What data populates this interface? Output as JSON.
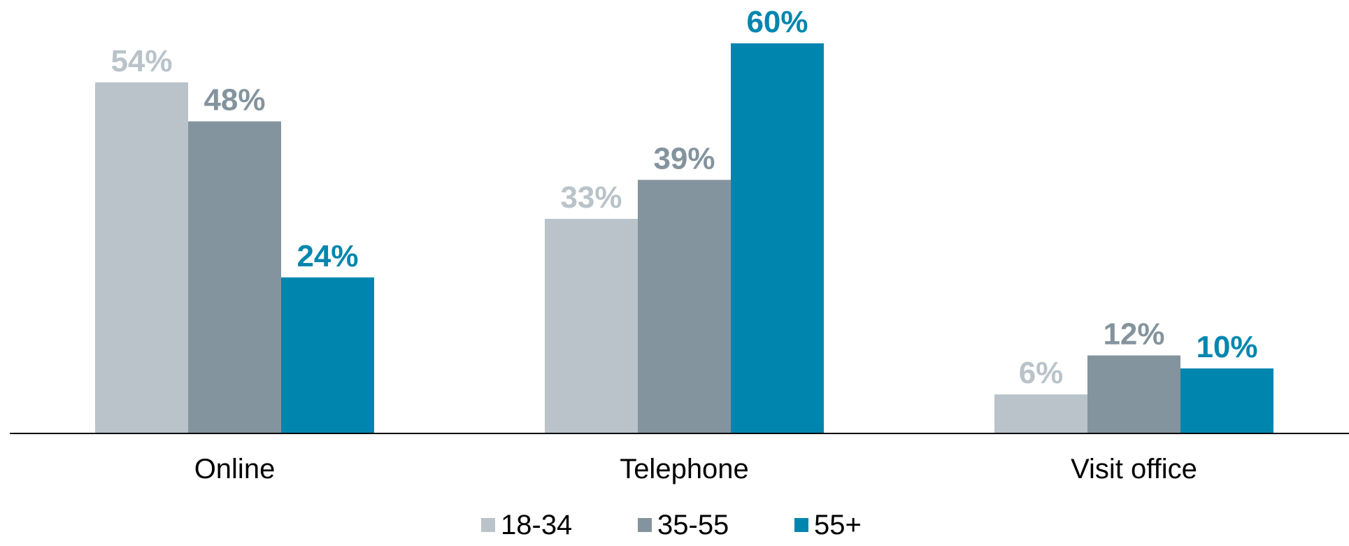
{
  "chart_data": {
    "type": "bar",
    "categories": [
      "Online",
      "Telephone",
      "Visit office"
    ],
    "series": [
      {
        "name": "18-34",
        "values": [
          54,
          33,
          6
        ],
        "color": "#b9c3c9"
      },
      {
        "name": "35-55",
        "values": [
          48,
          39,
          12
        ],
        "color": "#84949e"
      },
      {
        "name": "55+",
        "values": [
          24,
          60,
          10
        ],
        "color": "#0086ae"
      }
    ],
    "value_labels": [
      [
        "54%",
        "33%",
        "6%"
      ],
      [
        "48%",
        "39%",
        "12%"
      ],
      [
        "24%",
        "60%",
        "10%"
      ]
    ],
    "ylim": [
      0,
      60
    ],
    "grid": false,
    "legend": {
      "position": "bottom"
    }
  }
}
